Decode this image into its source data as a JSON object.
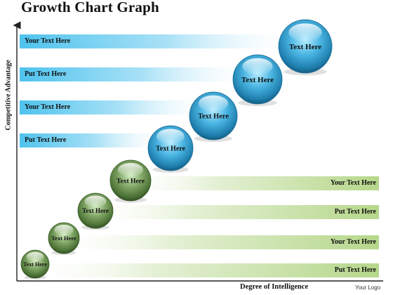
{
  "title": "Growth Chart Graph",
  "y_axis_label": "Competitive Advantage",
  "x_axis_label": "Degree of Intelligence",
  "logo_text": "Your Logo",
  "blue_bands": [
    "Your Text Here",
    "Put Text Here",
    "Your Text Here",
    "Put Text Here"
  ],
  "green_bands": [
    "Your Text Here",
    "Put Text Here",
    "Your Text Here",
    "Put Text Here"
  ],
  "balls": [
    {
      "label": "Text Here",
      "color": "green"
    },
    {
      "label": "Text Here",
      "color": "green"
    },
    {
      "label": "Text Here",
      "color": "green"
    },
    {
      "label": "Text Here",
      "color": "green"
    },
    {
      "label": "Text Here",
      "color": "blue"
    },
    {
      "label": "Text Here",
      "color": "blue"
    },
    {
      "label": "Text Here",
      "color": "blue"
    },
    {
      "label": "Text Here",
      "color": "blue"
    }
  ],
  "colors": {
    "blue_band": "#5bc8ee",
    "green_band": "#b9d98f",
    "blue_ball": "#2a8fc0",
    "green_ball": "#4f7a3a"
  }
}
